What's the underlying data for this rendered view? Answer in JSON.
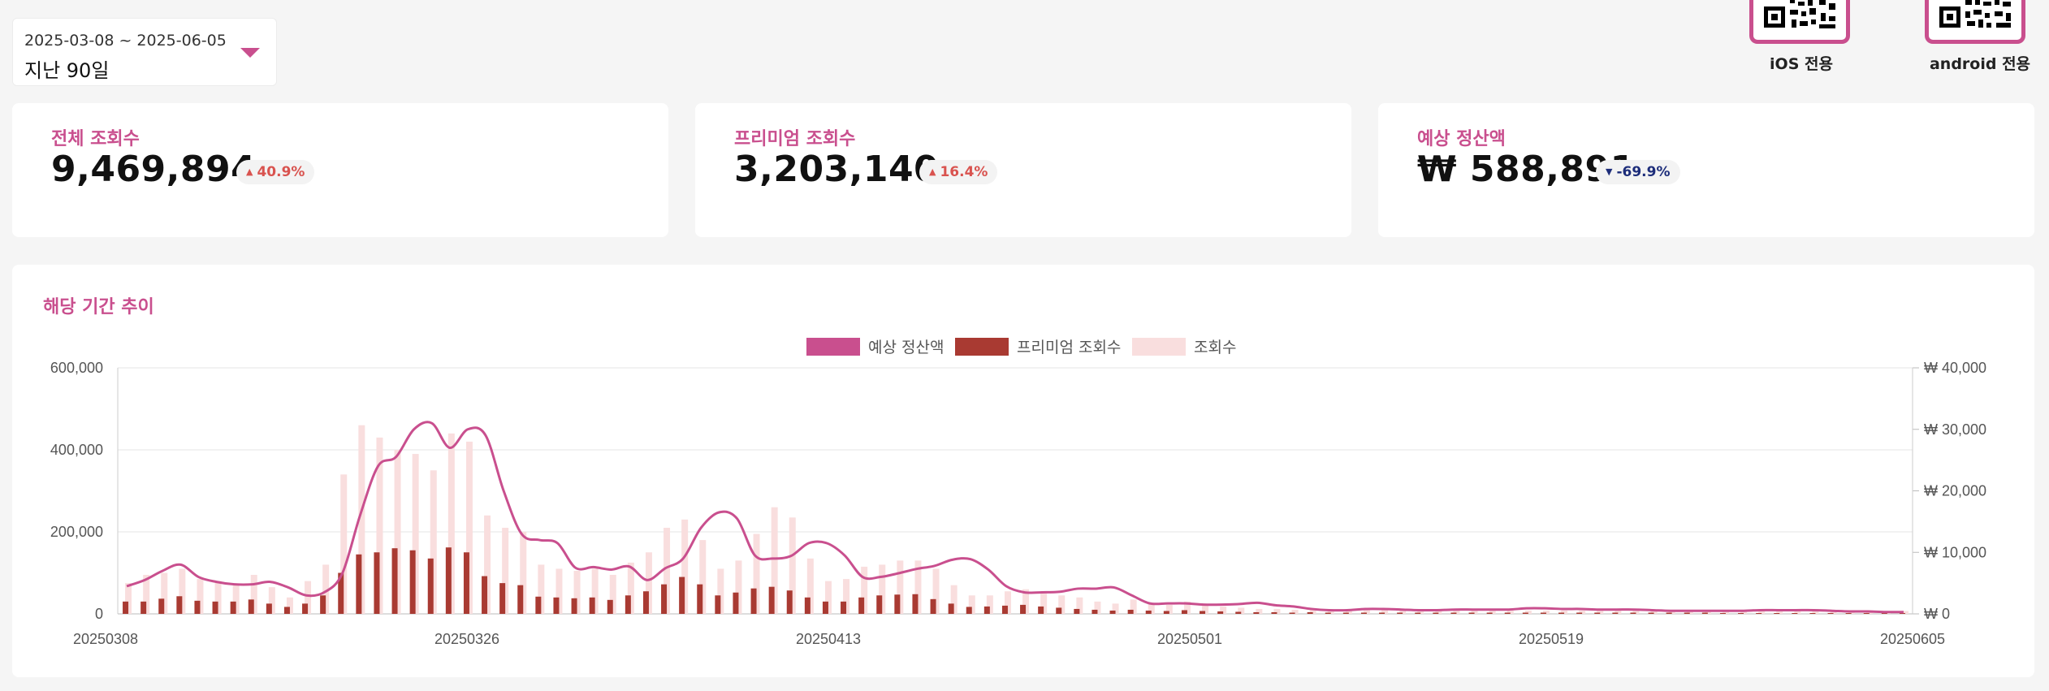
{
  "filter": {
    "date_range": "2025-03-08 ~ 2025-06-05",
    "period_label": "지난 90일"
  },
  "qr": {
    "ios_label": "iOS 전용",
    "android_label": "android 전용"
  },
  "stats": [
    {
      "title": "전체 조회수",
      "value": "9,469,894",
      "change": "40.9%",
      "direction": "up"
    },
    {
      "title": "프리미엄 조회수",
      "value": "3,203,140",
      "change": "16.4%",
      "direction": "up"
    },
    {
      "title": "예상 정산액",
      "value": "₩ 588,891",
      "change": "-69.9%",
      "direction": "down"
    }
  ],
  "colors": {
    "accent": "#c94f8e",
    "premium_bar": "#a93a32",
    "views_bar": "#f9dede",
    "revenue_line": "#c94f8e",
    "up": "#d9534f",
    "down": "#1d2d7a"
  },
  "chart": {
    "title": "해당 기간 추이"
  },
  "chart_data": {
    "type": "bar",
    "legend_position": "top-center",
    "grid": true,
    "x_tick_labels": [
      "20250308",
      "20250326",
      "20250413",
      "20250501",
      "20250519",
      "20250605"
    ],
    "left_axis": {
      "ticks": [
        "0",
        "200,000",
        "400,000",
        "600,000"
      ],
      "ylim": [
        0,
        600000
      ]
    },
    "right_axis": {
      "ticks": [
        "₩ 0",
        "₩ 10,000",
        "₩ 20,000",
        "₩ 30,000",
        "₩ 40,000"
      ],
      "ylim": [
        0,
        40000
      ]
    },
    "series": [
      {
        "name": "예상 정산액",
        "type": "line",
        "axis": "right",
        "values": [
          4500,
          5500,
          7000,
          8000,
          6000,
          5200,
          4800,
          4800,
          5200,
          4300,
          3000,
          3500,
          6500,
          16000,
          24000,
          25500,
          30000,
          31000,
          27000,
          30000,
          29000,
          20000,
          13000,
          12000,
          11500,
          7500,
          7600,
          7200,
          7700,
          5500,
          7400,
          9000,
          14000,
          16500,
          15500,
          9500,
          9000,
          9400,
          11500,
          11500,
          9500,
          6000,
          6000,
          6600,
          7300,
          7800,
          8800,
          8900,
          7200,
          4500,
          3500,
          3500,
          3600,
          4100,
          4100,
          4300,
          3000,
          1700,
          1700,
          1700,
          1500,
          1500,
          1600,
          1800,
          1400,
          1200,
          800,
          600,
          600,
          800,
          800,
          700,
          600,
          600,
          700,
          700,
          700,
          700,
          900,
          900,
          800,
          800,
          700,
          700,
          700,
          600,
          500,
          500,
          500,
          500,
          500,
          600,
          600,
          600,
          600,
          500,
          400,
          400,
          300,
          300
        ]
      },
      {
        "name": "프리미엄 조회수",
        "type": "bar",
        "axis": "left",
        "values": [
          30000,
          30000,
          37000,
          43000,
          32000,
          30000,
          30000,
          35000,
          25000,
          17000,
          25000,
          45000,
          100000,
          145000,
          150000,
          160000,
          155000,
          135000,
          162000,
          150000,
          92000,
          75000,
          70000,
          42000,
          40000,
          38000,
          40000,
          34000,
          45000,
          55000,
          72000,
          90000,
          72000,
          45000,
          52000,
          62000,
          66000,
          57000,
          40000,
          30000,
          30000,
          40000,
          45000,
          47000,
          48000,
          36000,
          25000,
          17000,
          18000,
          20000,
          22000,
          18000,
          15000,
          12000,
          10000,
          8000,
          10000,
          8000,
          7000,
          9000,
          7000,
          6000,
          5000,
          4000,
          4000,
          3000,
          4000,
          3000,
          3000,
          3000,
          3000,
          3000,
          3000,
          3000,
          3000,
          3000,
          3000,
          3000,
          3000,
          3000,
          3000,
          3000,
          3000,
          3000,
          3000,
          3000,
          3000,
          3000,
          3000,
          2000,
          2000,
          2000,
          2000,
          2000,
          2000,
          2000,
          2000,
          2000,
          2000,
          2000
        ]
      },
      {
        "name": "조회수",
        "type": "bar",
        "axis": "left",
        "values": [
          75000,
          95000,
          100000,
          110000,
          85000,
          80000,
          70000,
          95000,
          65000,
          40000,
          80000,
          120000,
          340000,
          460000,
          430000,
          400000,
          390000,
          350000,
          440000,
          420000,
          240000,
          210000,
          200000,
          120000,
          110000,
          105000,
          110000,
          95000,
          125000,
          150000,
          210000,
          230000,
          180000,
          110000,
          130000,
          195000,
          260000,
          235000,
          135000,
          80000,
          85000,
          115000,
          120000,
          130000,
          130000,
          110000,
          70000,
          45000,
          45000,
          55000,
          60000,
          50000,
          45000,
          40000,
          30000,
          25000,
          35000,
          25000,
          22000,
          30000,
          22000,
          18000,
          15000,
          12000,
          12000,
          10000,
          12000,
          10000,
          9000,
          9000,
          9000,
          9000,
          9000,
          9000,
          9000,
          9000,
          8000,
          8000,
          8000,
          8000,
          8000,
          8000,
          8000,
          8000,
          8000,
          8000,
          8000,
          8000,
          8000,
          7000,
          7000,
          7000,
          7000,
          7000,
          7000,
          7000,
          7000,
          7000,
          7000,
          7000
        ]
      }
    ]
  }
}
